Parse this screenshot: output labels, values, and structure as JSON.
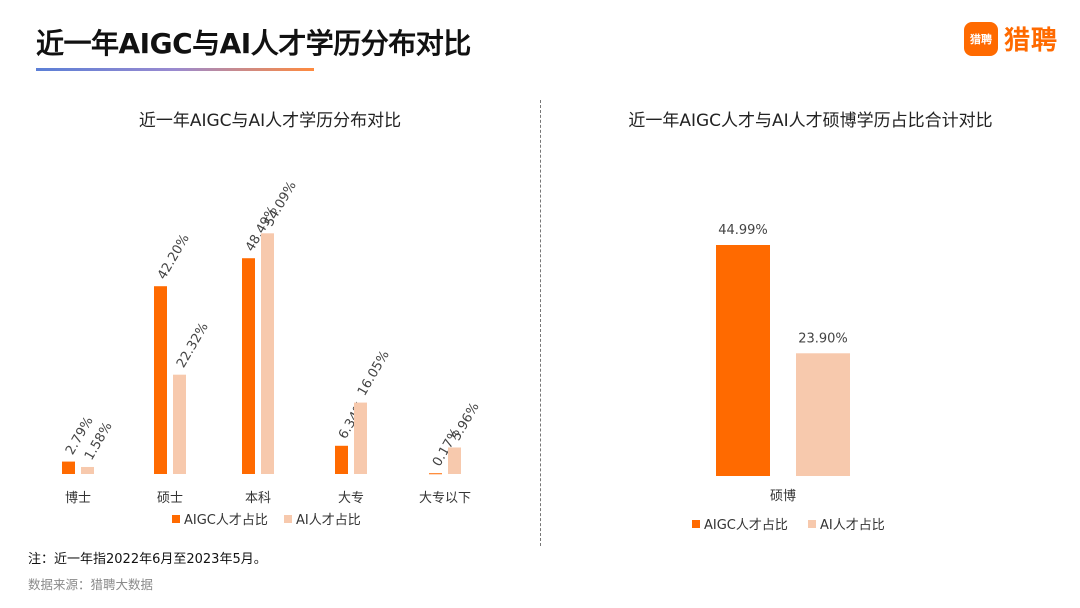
{
  "header": {
    "title": "近一年AIGC与AI人才学历分布对比",
    "brand_name": "猎聘",
    "brand_mark": "猎聘"
  },
  "colors": {
    "aigc": "#ff6a00",
    "ai": "#f7c9ad"
  },
  "chart_data": [
    {
      "type": "bar",
      "title": "近一年AIGC与AI人才学历分布对比",
      "categories": [
        "博士",
        "硕士",
        "本科",
        "大专",
        "大专以下"
      ],
      "series": [
        {
          "name": "AIGC人才占比",
          "values": [
            2.79,
            42.2,
            48.49,
            6.34,
            0.17
          ],
          "labels": [
            "2.79%",
            "42.20%",
            "48.49%",
            "6.34%",
            "0.17%"
          ]
        },
        {
          "name": "AI人才占比",
          "values": [
            1.58,
            22.32,
            54.09,
            16.05,
            5.96
          ],
          "labels": [
            "1.58%",
            "22.32%",
            "54.09%",
            "16.05%",
            "5.96%"
          ]
        }
      ],
      "ylim": [
        0,
        60
      ],
      "grid": false,
      "legend": "bottom"
    },
    {
      "type": "bar",
      "title": "近一年AIGC人才与AI人才硕博学历占比合计对比",
      "categories": [
        "硕博"
      ],
      "series": [
        {
          "name": "AIGC人才占比",
          "values": [
            44.99
          ],
          "labels": [
            "44.99%"
          ]
        },
        {
          "name": "AI人才占比",
          "values": [
            23.9
          ],
          "labels": [
            "23.90%"
          ]
        }
      ],
      "ylim": [
        0,
        48
      ],
      "grid": false,
      "legend": "bottom"
    }
  ],
  "footnote": "注：近一年指2022年6月至2023年5月。",
  "source": "数据来源：猎聘大数据"
}
